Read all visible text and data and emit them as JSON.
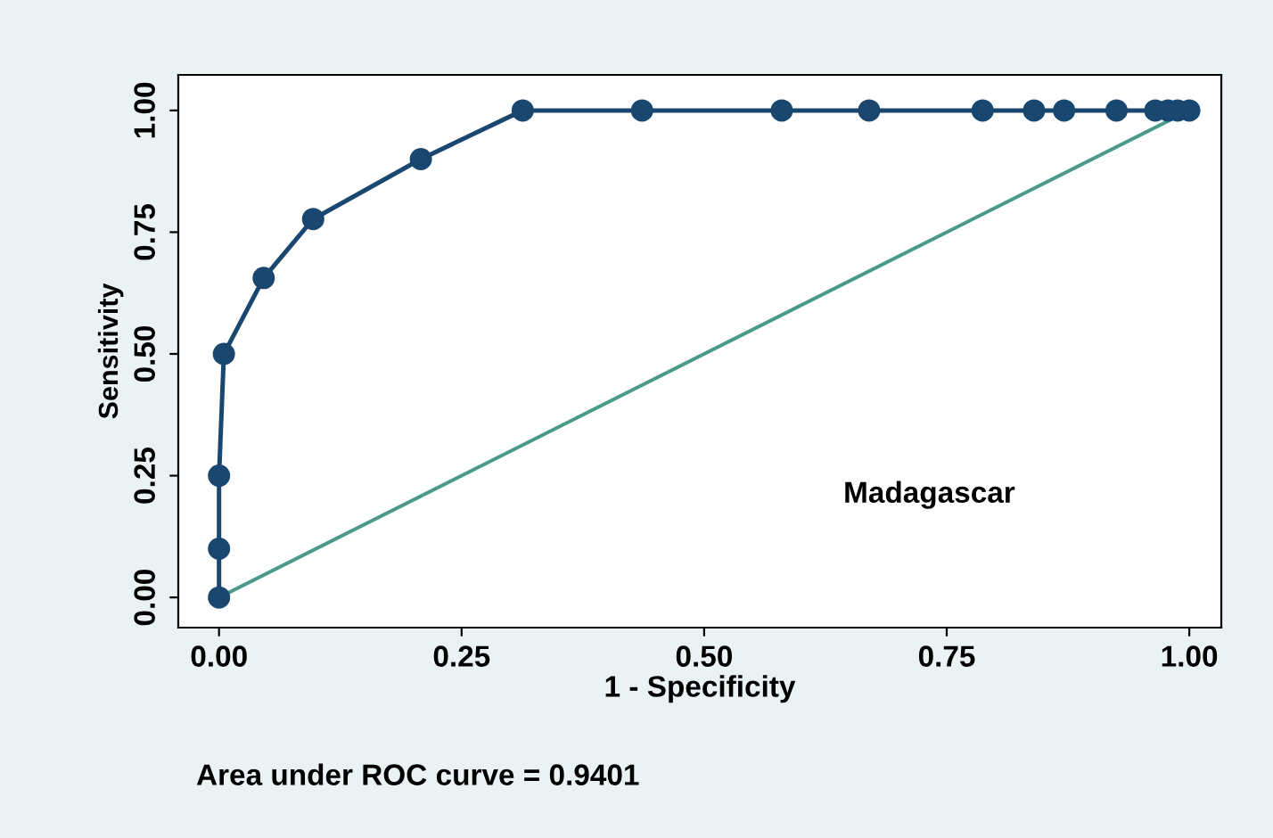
{
  "chart_data": {
    "type": "line",
    "xlabel": "1 - Specificity",
    "ylabel": "Sensitivity",
    "annotations": [
      "Madagascar",
      "Area under ROC curve = 0.9401"
    ],
    "xlim": [
      -0.042,
      1.033
    ],
    "ylim": [
      -0.062,
      1.073
    ],
    "xticks": [
      {
        "value": 0,
        "label": "0.00"
      },
      {
        "value": 0.25,
        "label": "0.25"
      },
      {
        "value": 0.5,
        "label": "0.50"
      },
      {
        "value": 0.75,
        "label": "0.75"
      },
      {
        "value": 1,
        "label": "1.00"
      }
    ],
    "yticks": [
      {
        "value": 0,
        "label": "0.00"
      },
      {
        "value": 0.25,
        "label": "0.25"
      },
      {
        "value": 0.5,
        "label": "0.50"
      },
      {
        "value": 0.75,
        "label": "0.75"
      },
      {
        "value": 1,
        "label": "1.00"
      }
    ],
    "grid": false,
    "legend": false,
    "series": [
      {
        "color": "#1a476f",
        "marker": "circle",
        "x": [
          0,
          0,
          0,
          0.005,
          0.046,
          0.097,
          0.208,
          0.313,
          0.436,
          0.58,
          0.67,
          0.787,
          0.84,
          0.871,
          0.925,
          0.965,
          0.978,
          0.988,
          1
        ],
        "values": [
          0,
          0.1,
          0.25,
          0.5,
          0.656,
          0.777,
          0.9,
          1,
          1,
          1,
          1,
          1,
          1,
          1,
          1,
          1,
          1,
          1,
          1
        ]
      },
      {
        "color": "#4a9a8c",
        "marker": "none",
        "x": [
          0,
          1
        ],
        "values": [
          0,
          1
        ]
      }
    ]
  }
}
